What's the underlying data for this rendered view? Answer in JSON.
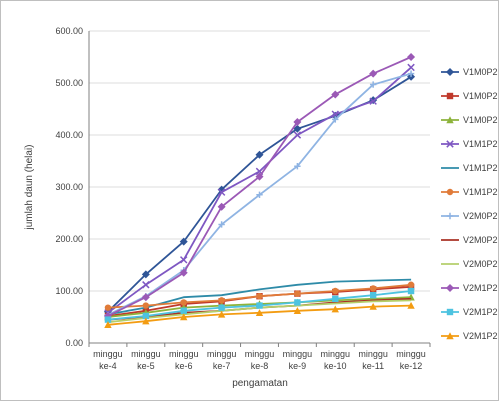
{
  "chart_data": {
    "type": "line",
    "title": "",
    "xlabel": "pengamatan",
    "ylabel": "jumlah daun (helai)",
    "ylim": [
      0,
      600
    ],
    "yticks": [
      "0.00",
      "100.00",
      "200.00",
      "300.00",
      "400.00",
      "500.00",
      "600.00"
    ],
    "categories": [
      [
        "minggu",
        "ke-4"
      ],
      [
        "minggu",
        "ke-5"
      ],
      [
        "minggu",
        "ke-6"
      ],
      [
        "minggu",
        "ke-7"
      ],
      [
        "minggu",
        "ke-8"
      ],
      [
        "minggu",
        "ke-9"
      ],
      [
        "minggu",
        "ke-10"
      ],
      [
        "minggu",
        "ke-11"
      ],
      [
        "minggu",
        "ke-12"
      ]
    ],
    "grid": true,
    "legend_position": "right",
    "series": [
      {
        "name": "V1M0P2",
        "color": "#2F5597",
        "marker": "diamond",
        "values": [
          60,
          132,
          195,
          295,
          362,
          412,
          437,
          467,
          512
        ]
      },
      {
        "name": "V1M0P2",
        "color": "#C0392B",
        "marker": "square",
        "values": [
          52,
          62,
          75,
          80,
          90,
          95,
          98,
          103,
          108
        ]
      },
      {
        "name": "V1M0P2",
        "color": "#8DB33B",
        "marker": "triangle",
        "values": [
          50,
          58,
          68,
          72,
          75,
          78,
          82,
          85,
          88
        ]
      },
      {
        "name": "V1M1P2",
        "color": "#7E57C2",
        "marker": "x",
        "values": [
          58,
          112,
          160,
          290,
          330,
          400,
          440,
          465,
          530
        ]
      },
      {
        "name": "V1M1P2",
        "color": "#2E8BA8",
        "marker": "none",
        "values": [
          55,
          68,
          88,
          92,
          103,
          112,
          118,
          120,
          122
        ]
      },
      {
        "name": "V1M1P2",
        "color": "#E07B39",
        "marker": "circle",
        "values": [
          68,
          72,
          78,
          82,
          90,
          95,
          100,
          105,
          112
        ]
      },
      {
        "name": "V2M0P2",
        "color": "#8FB4E3",
        "marker": "plus",
        "values": [
          54,
          90,
          140,
          228,
          285,
          340,
          430,
          497,
          518
        ]
      },
      {
        "name": "V2M0P2",
        "color": "#A93226",
        "marker": "none",
        "values": [
          45,
          50,
          58,
          62,
          68,
          72,
          78,
          82,
          85
        ]
      },
      {
        "name": "V2M0P2",
        "color": "#B5CF6B",
        "marker": "none",
        "values": [
          40,
          48,
          55,
          62,
          68,
          72,
          76,
          80,
          82
        ]
      },
      {
        "name": "V2M1P2",
        "color": "#9B59B6",
        "marker": "diamond",
        "values": [
          52,
          88,
          135,
          262,
          320,
          425,
          478,
          518,
          550
        ]
      },
      {
        "name": "V2M1P2",
        "color": "#4DC3E0",
        "marker": "square",
        "values": [
          45,
          52,
          62,
          68,
          72,
          78,
          85,
          92,
          100
        ]
      },
      {
        "name": "V2M1P2",
        "color": "#F39C12",
        "marker": "triangle",
        "values": [
          35,
          42,
          50,
          55,
          58,
          62,
          65,
          70,
          72
        ]
      }
    ]
  }
}
